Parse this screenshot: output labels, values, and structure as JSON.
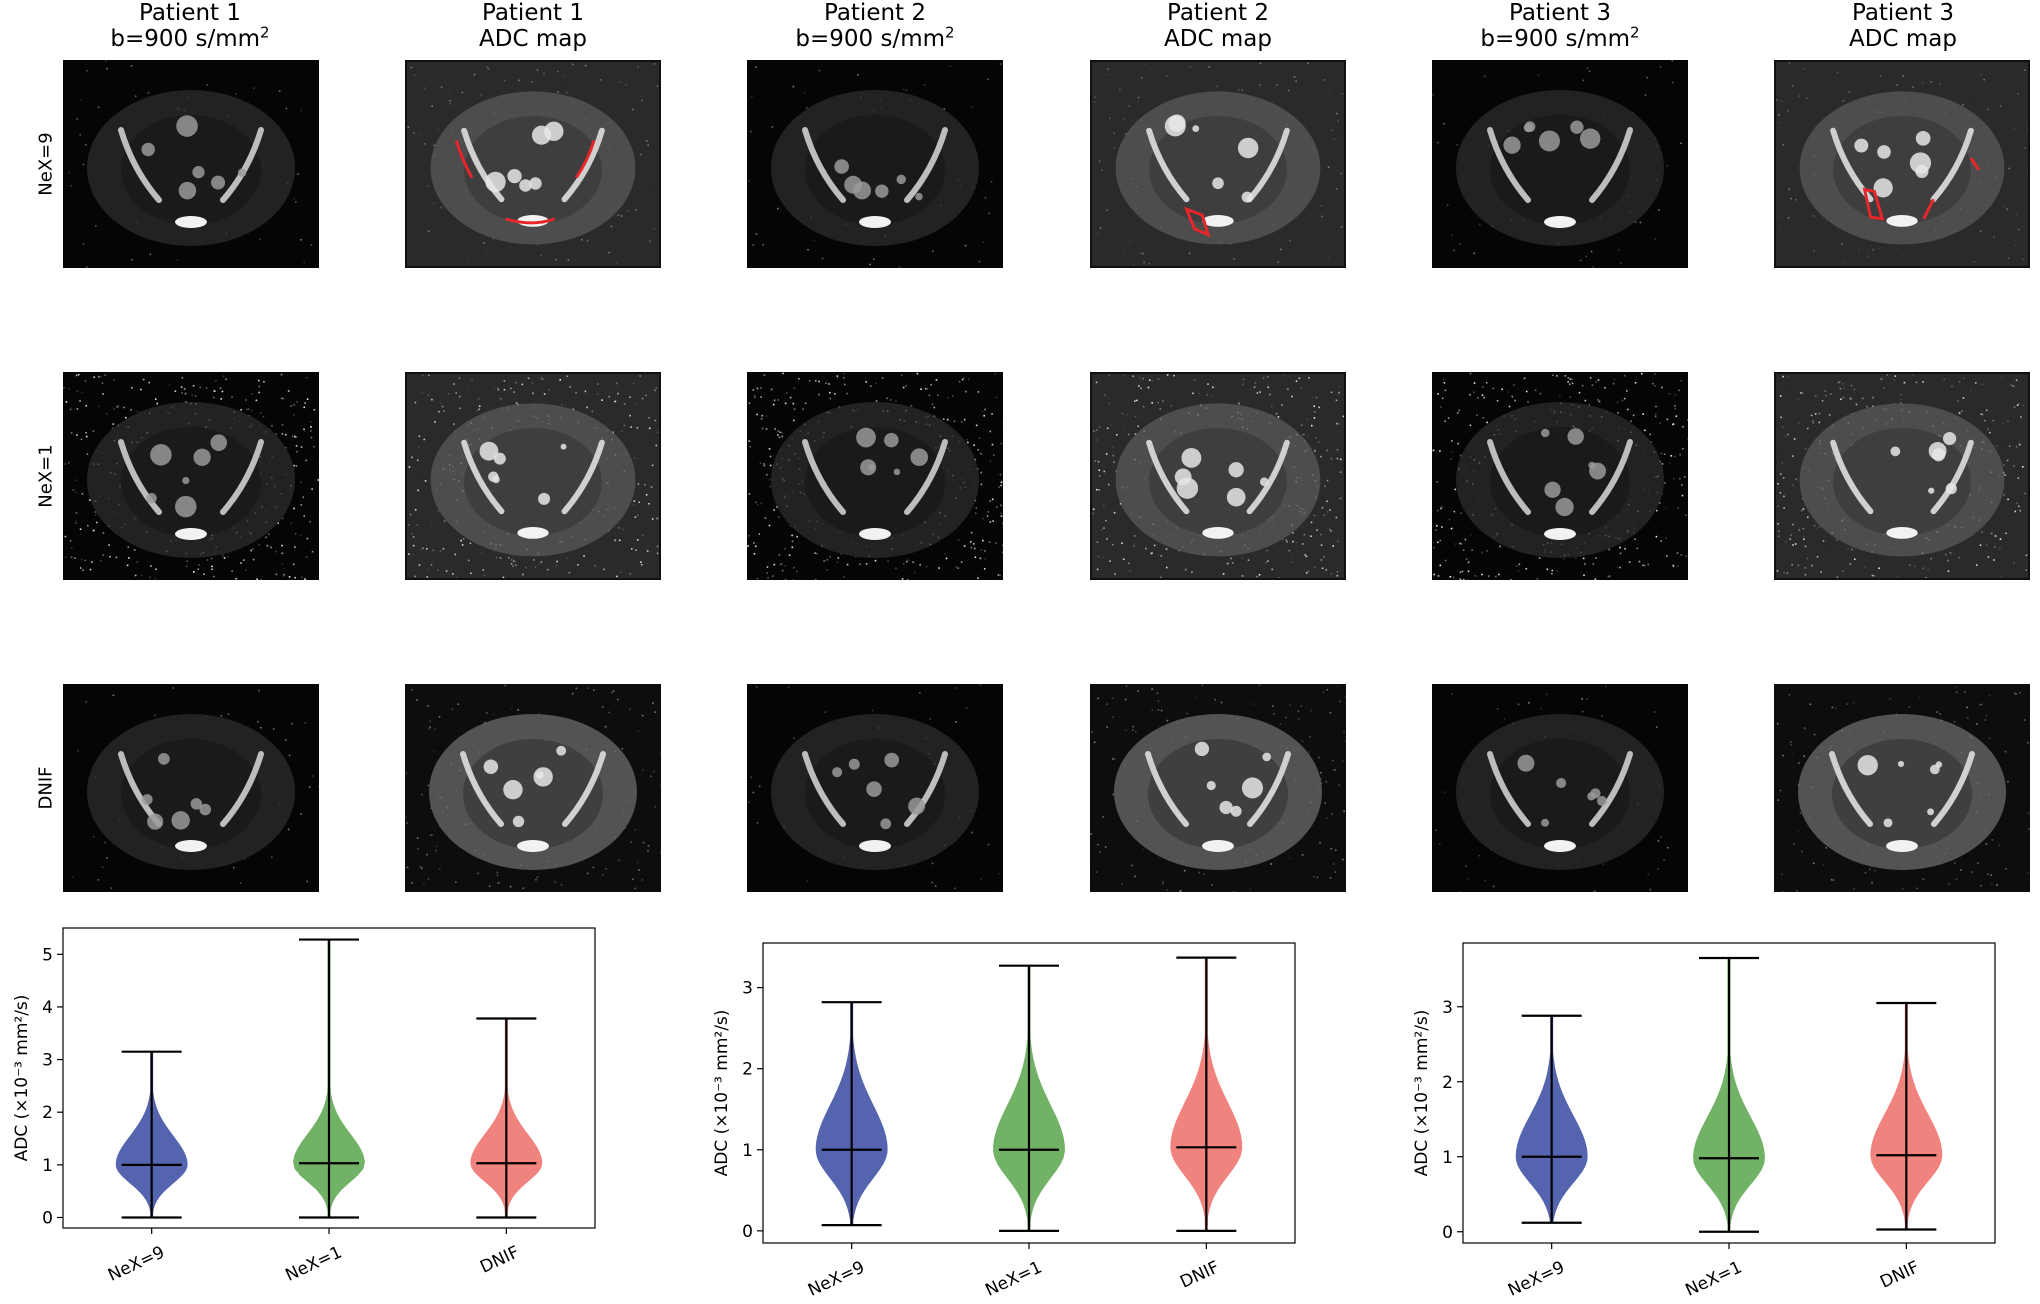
{
  "columns": [
    {
      "line1": "Patient 1",
      "line2_prefix": "b=900 s/mm",
      "line2_sup": "2"
    },
    {
      "line1": "Patient 1",
      "line2": "ADC map"
    },
    {
      "line1": "Patient 2",
      "line2_prefix": "b=900 s/mm",
      "line2_sup": "2"
    },
    {
      "line1": "Patient 2",
      "line2": "ADC map"
    },
    {
      "line1": "Patient 3",
      "line2_prefix": "b=900 s/mm",
      "line2_sup": "2"
    },
    {
      "line1": "Patient 3",
      "line2": "ADC map"
    }
  ],
  "rows": [
    "NeX=9",
    "NeX=1",
    "DNIF"
  ],
  "colors": {
    "nex9": "#4c5cab",
    "nex1": "#6aae5e",
    "dnif": "#f07c78",
    "roi": "#e8262a"
  },
  "chart_data": [
    {
      "type": "violin",
      "categories": [
        "NeX=9",
        "NeX=1",
        "DNIF"
      ],
      "ylabel": "ADC (×10⁻³ mm²/s)",
      "ylim": [
        -0.2,
        5.5
      ],
      "yticks": [
        "0",
        "1",
        "2",
        "3",
        "4",
        "5"
      ],
      "series": [
        {
          "name": "NeX=9",
          "min": 0.0,
          "median": 1.0,
          "max": 3.15
        },
        {
          "name": "NeX=1",
          "min": 0.0,
          "median": 1.03,
          "max": 5.28
        },
        {
          "name": "DNIF",
          "min": 0.0,
          "median": 1.03,
          "max": 3.78
        }
      ]
    },
    {
      "type": "violin",
      "categories": [
        "NeX=9",
        "NeX=1",
        "DNIF"
      ],
      "ylabel": "ADC (×10⁻³ mm²/s)",
      "ylim": [
        -0.15,
        3.55
      ],
      "yticks": [
        "0",
        "1",
        "2",
        "3"
      ],
      "series": [
        {
          "name": "NeX=9",
          "min": 0.07,
          "median": 1.0,
          "max": 2.82
        },
        {
          "name": "NeX=1",
          "min": 0.0,
          "median": 1.0,
          "max": 3.27
        },
        {
          "name": "DNIF",
          "min": 0.0,
          "median": 1.03,
          "max": 3.37
        }
      ]
    },
    {
      "type": "violin",
      "categories": [
        "NeX=9",
        "NeX=1",
        "DNIF"
      ],
      "ylabel": "ADC (×10⁻³ mm²/s)",
      "ylim": [
        -0.15,
        3.85
      ],
      "yticks": [
        "0",
        "1",
        "2",
        "3"
      ],
      "series": [
        {
          "name": "NeX=9",
          "min": 0.12,
          "median": 1.0,
          "max": 2.88
        },
        {
          "name": "NeX=1",
          "min": 0.0,
          "median": 0.98,
          "max": 3.65
        },
        {
          "name": "DNIF",
          "min": 0.03,
          "median": 1.02,
          "max": 3.05
        }
      ]
    }
  ]
}
